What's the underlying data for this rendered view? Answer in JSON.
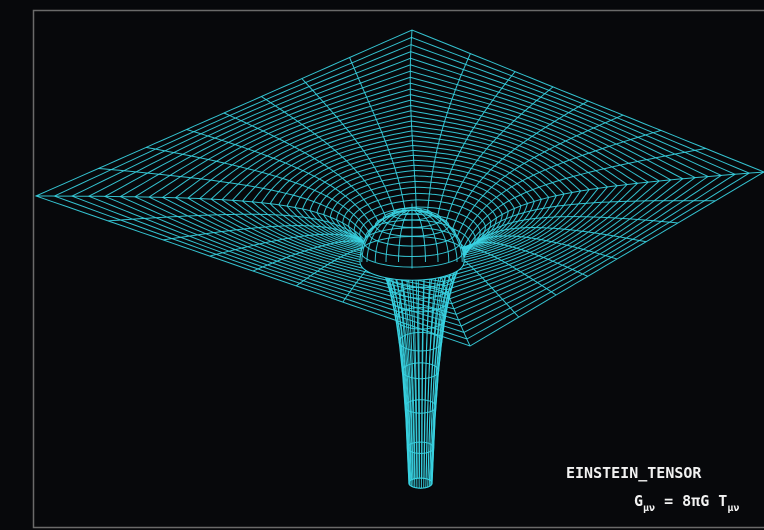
{
  "panel": {
    "label": "EINSTEIN_TENSOR",
    "equation": {
      "lhs": "G",
      "lhs_sub": "μν",
      "rhs": " = 8πG T",
      "rhs_sub": "μν"
    }
  }
}
